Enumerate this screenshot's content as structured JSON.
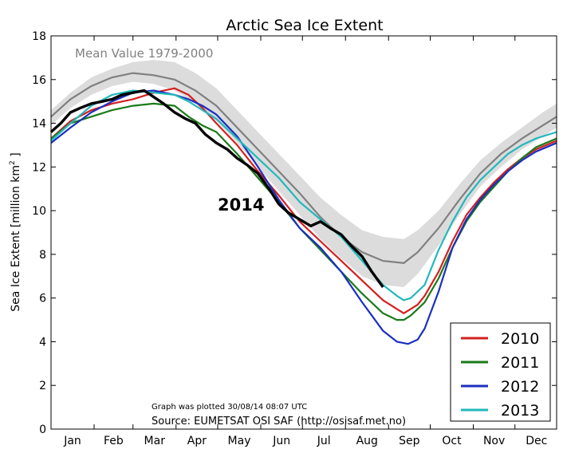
{
  "chart_data": {
    "type": "line",
    "title": "Arctic Sea Ice Extent",
    "ylabel": "Sea Ice Extent [million km",
    "ylabel_sup": "2",
    "ylabel_end": " ]",
    "ylim": [
      0,
      18
    ],
    "yticks": [
      0,
      2,
      4,
      6,
      8,
      10,
      12,
      14,
      16,
      18
    ],
    "months": [
      "Jan",
      "Feb",
      "Mar",
      "Apr",
      "May",
      "Jun",
      "Jul",
      "Aug",
      "Sep",
      "Oct",
      "Nov",
      "Dec"
    ],
    "mean_label": "Mean Value 1979-2000",
    "highlight_label": "2014",
    "plot_note": "Graph was plotted 30/08/14 08:07 UTC",
    "source_note": "Source: EUMETSAT OSI SAF (http://osisaf.met.no)",
    "legend_position": "bottom-right",
    "mean_band": {
      "day": [
        1,
        15,
        30,
        45,
        60,
        75,
        90,
        105,
        120,
        135,
        150,
        165,
        180,
        195,
        210,
        225,
        240,
        255,
        265,
        280,
        295,
        310,
        325,
        340,
        355,
        365
      ],
      "upper": [
        14.6,
        15.4,
        16.1,
        16.5,
        16.8,
        16.9,
        16.8,
        16.3,
        15.6,
        14.6,
        13.6,
        12.6,
        11.6,
        10.6,
        9.8,
        9.1,
        8.8,
        8.7,
        9.1,
        10.0,
        11.2,
        12.3,
        13.1,
        13.8,
        14.5,
        14.9
      ],
      "lower": [
        13.9,
        14.7,
        15.3,
        15.7,
        15.9,
        15.8,
        15.5,
        14.9,
        14.1,
        13.1,
        12.0,
        10.9,
        9.8,
        8.7,
        7.8,
        7.0,
        6.6,
        6.5,
        7.1,
        8.4,
        9.8,
        11.1,
        12.0,
        12.8,
        13.4,
        13.8
      ]
    },
    "mean_line": {
      "day": [
        1,
        15,
        30,
        45,
        60,
        75,
        90,
        105,
        120,
        135,
        150,
        165,
        180,
        195,
        210,
        225,
        240,
        255,
        265,
        280,
        295,
        310,
        325,
        340,
        355,
        365
      ],
      "value": [
        14.3,
        15.1,
        15.7,
        16.1,
        16.3,
        16.2,
        16.0,
        15.5,
        14.8,
        13.8,
        12.8,
        11.8,
        10.8,
        9.7,
        8.8,
        8.1,
        7.7,
        7.6,
        8.1,
        9.2,
        10.5,
        11.7,
        12.6,
        13.3,
        13.9,
        14.3
      ]
    },
    "series": [
      {
        "name": "2010",
        "color": "#d42020",
        "day": [
          1,
          15,
          30,
          45,
          60,
          75,
          90,
          100,
          110,
          120,
          135,
          150,
          165,
          180,
          195,
          210,
          225,
          240,
          250,
          255,
          260,
          265,
          270,
          280,
          290,
          300,
          310,
          320,
          330,
          340,
          350,
          365
        ],
        "value": [
          13.3,
          14.1,
          14.6,
          14.9,
          15.1,
          15.4,
          15.6,
          15.3,
          14.7,
          14.0,
          13.0,
          11.8,
          10.7,
          9.5,
          8.6,
          7.7,
          6.8,
          5.9,
          5.5,
          5.3,
          5.5,
          5.7,
          6.1,
          7.2,
          8.6,
          9.8,
          10.6,
          11.3,
          11.9,
          12.4,
          12.8,
          13.2
        ]
      },
      {
        "name": "2011",
        "color": "#1b7a1b",
        "day": [
          1,
          15,
          30,
          45,
          60,
          75,
          90,
          100,
          110,
          120,
          135,
          150,
          165,
          180,
          195,
          210,
          225,
          240,
          250,
          255,
          260,
          265,
          270,
          280,
          290,
          300,
          310,
          320,
          330,
          340,
          350,
          365
        ],
        "value": [
          13.3,
          14.0,
          14.3,
          14.6,
          14.8,
          14.9,
          14.8,
          14.3,
          13.9,
          13.6,
          12.6,
          11.5,
          10.4,
          9.2,
          8.2,
          7.2,
          6.2,
          5.3,
          5.0,
          5.0,
          5.2,
          5.5,
          5.8,
          6.9,
          8.3,
          9.5,
          10.4,
          11.1,
          11.8,
          12.4,
          12.9,
          13.3
        ]
      },
      {
        "name": "2012",
        "color": "#1c2fc0",
        "day": [
          1,
          15,
          30,
          45,
          60,
          75,
          90,
          100,
          110,
          120,
          135,
          150,
          165,
          180,
          195,
          210,
          225,
          240,
          250,
          258,
          265,
          270,
          280,
          290,
          300,
          310,
          320,
          330,
          340,
          350,
          365
        ],
        "value": [
          13.1,
          13.8,
          14.5,
          15.0,
          15.4,
          15.5,
          15.3,
          15.1,
          14.8,
          14.4,
          13.4,
          12.0,
          10.5,
          9.2,
          8.3,
          7.2,
          5.8,
          4.5,
          4.0,
          3.9,
          4.1,
          4.6,
          6.3,
          8.3,
          9.6,
          10.5,
          11.2,
          11.8,
          12.3,
          12.7,
          13.1
        ]
      },
      {
        "name": "2013",
        "color": "#22b8bc",
        "day": [
          1,
          15,
          30,
          45,
          60,
          75,
          90,
          100,
          110,
          120,
          135,
          150,
          165,
          180,
          195,
          210,
          225,
          240,
          250,
          255,
          260,
          265,
          270,
          280,
          290,
          300,
          310,
          320,
          330,
          340,
          350,
          365
        ],
        "value": [
          13.2,
          14.0,
          14.8,
          15.3,
          15.5,
          15.4,
          15.3,
          15.0,
          14.6,
          14.2,
          13.3,
          12.4,
          11.5,
          10.4,
          9.6,
          8.8,
          7.7,
          6.6,
          6.1,
          5.9,
          6.0,
          6.3,
          6.6,
          8.2,
          9.5,
          10.6,
          11.4,
          12.0,
          12.6,
          13.0,
          13.3,
          13.6
        ]
      }
    ],
    "highlight": {
      "name": "2014",
      "color": "#000000",
      "day": [
        1,
        8,
        15,
        22,
        30,
        38,
        45,
        52,
        60,
        68,
        75,
        82,
        90,
        98,
        105,
        112,
        120,
        128,
        135,
        142,
        150,
        158,
        165,
        172,
        180,
        188,
        195,
        202,
        210,
        217,
        225,
        232,
        240
      ],
      "value": [
        13.6,
        14.0,
        14.5,
        14.7,
        14.9,
        15.0,
        15.1,
        15.3,
        15.4,
        15.5,
        15.2,
        14.9,
        14.5,
        14.2,
        14.0,
        13.5,
        13.1,
        12.8,
        12.4,
        12.1,
        11.7,
        11.0,
        10.3,
        9.9,
        9.6,
        9.3,
        9.5,
        9.2,
        8.9,
        8.4,
        7.9,
        7.2,
        6.5
      ]
    }
  }
}
